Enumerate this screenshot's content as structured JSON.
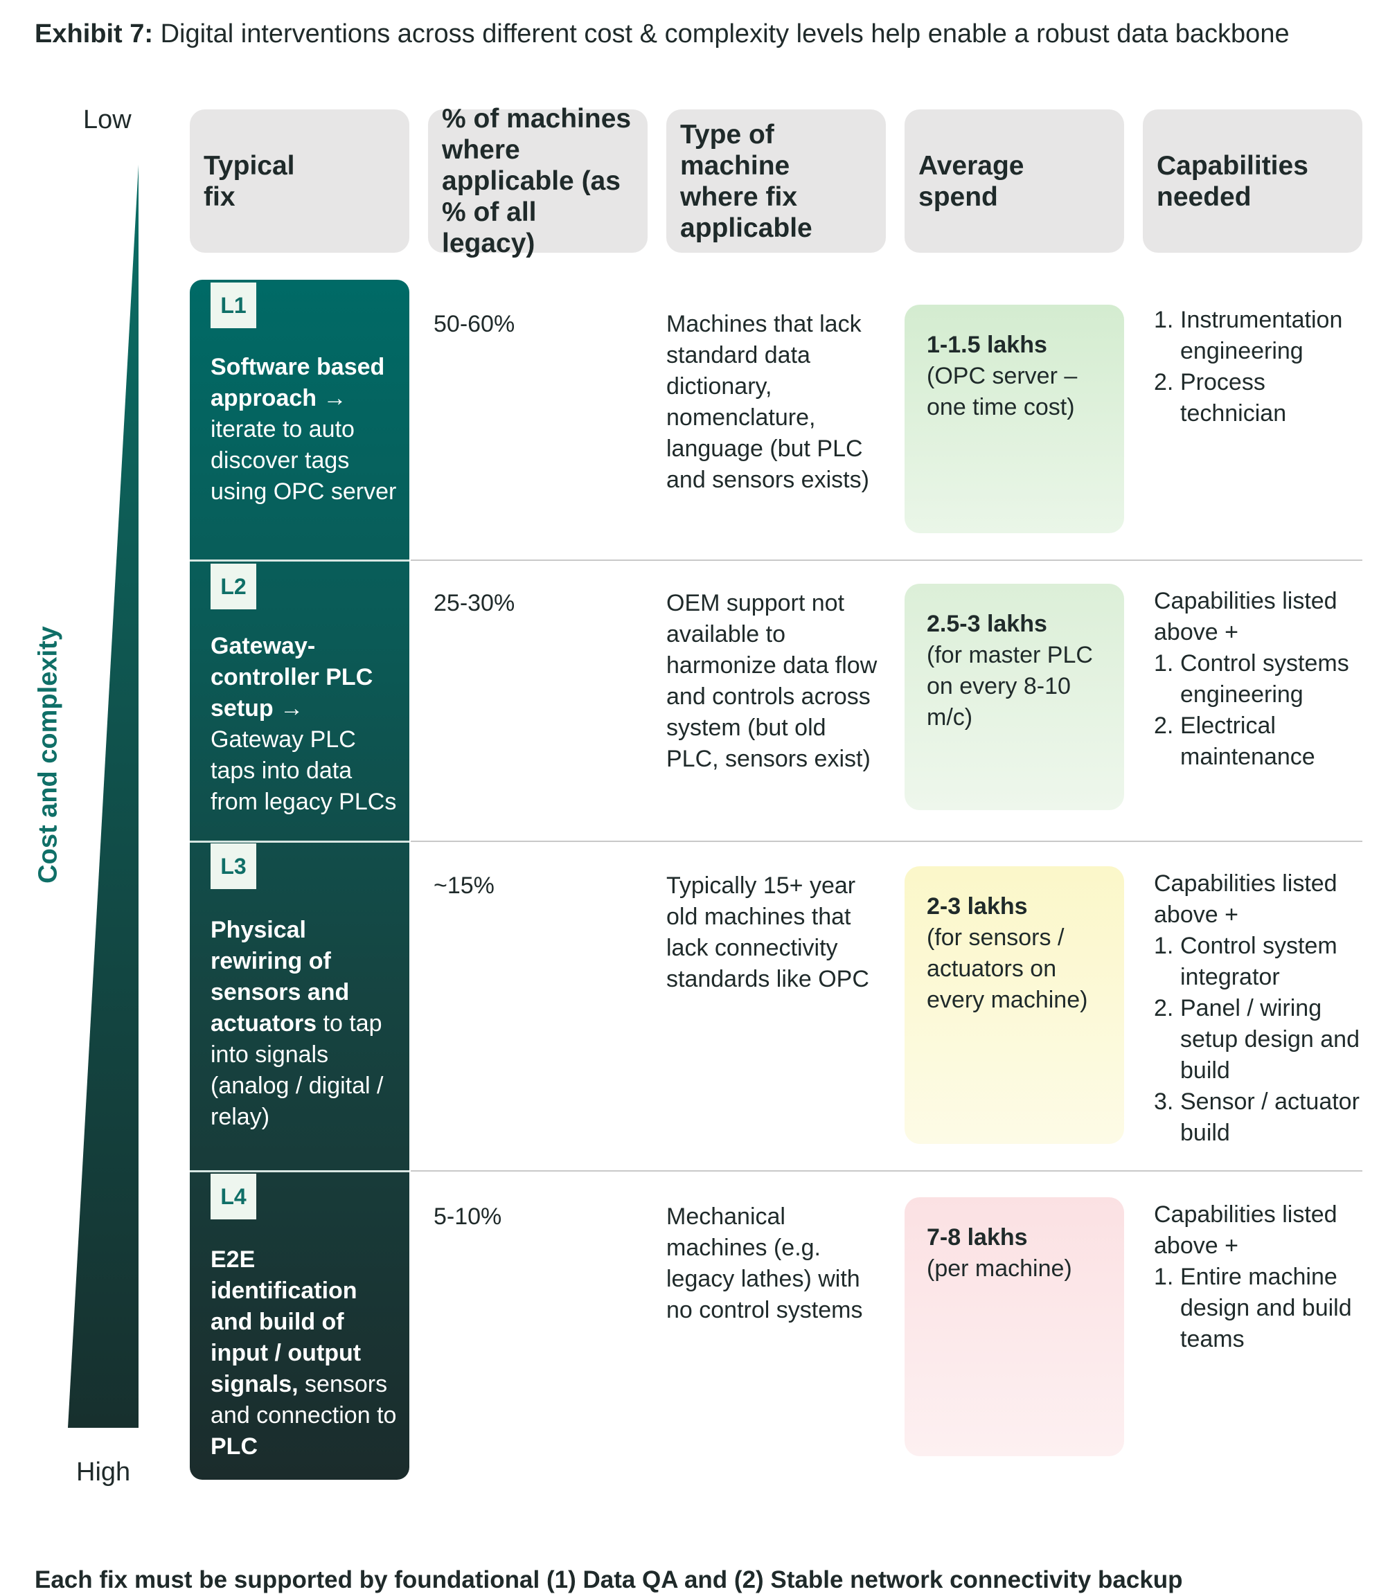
{
  "title": {
    "prefix": "Exhibit 7:",
    "text": "Digital interventions across different cost & complexity levels help enable a robust data backbone"
  },
  "scale": {
    "low": "Low",
    "high": "High",
    "axis_title": "Cost and complexity"
  },
  "headers": [
    "Typical fix",
    "% of machines where applicable (as % of all legacy)",
    "Type of machine where fix applicable",
    "Average spend",
    "Capabilities needed"
  ],
  "rows": [
    {
      "level": "L1",
      "fix_bold": "Software based approach →",
      "fix_rest": " iterate to auto discover tags using OPC server",
      "pct": "50-60%",
      "machine_type": "Machines that lack standard data dictionary, nomenclature, language (but PLC and sensors exists)",
      "spend_amount": "1-1.5 lakhs",
      "spend_note": "(OPC server – one time cost)",
      "spend_color": "#d7edd3",
      "caps_intro": "",
      "caps": [
        "Instrumentation engineering",
        "Process technician"
      ]
    },
    {
      "level": "L2",
      "fix_bold": "Gateway-controller PLC setup →",
      "fix_rest": " Gateway PLC taps into data from legacy PLCs",
      "pct": "25-30%",
      "machine_type": "OEM support not available to harmonize data flow and controls across system (but old PLC, sensors exist)",
      "spend_amount": "2.5-3 lakhs",
      "spend_note": "(for master PLC on every 8-10 m/c)",
      "spend_color": "#def0da",
      "caps_intro": "Capabilities listed above +",
      "caps": [
        "Control systems engineering",
        "Electrical maintenance"
      ]
    },
    {
      "level": "L3",
      "fix_bold": "Physical rewiring of sensors and actuators",
      "fix_rest": " to tap into signals (analog / digital / relay)",
      "pct": "~15%",
      "machine_type": "Typically 15+ year old machines that lack connectivity standards like OPC",
      "spend_amount": "2-3 lakhs",
      "spend_note": "(for sensors / actuators on every machine)",
      "spend_color": "#fbf8d0",
      "caps_intro": "Capabilities listed above +",
      "caps": [
        "Control system integrator",
        "Panel / wiring setup design and build",
        "Sensor / actuator build"
      ]
    },
    {
      "level": "L4",
      "fix_bold": "E2E identification and build of input / output signals,",
      "fix_rest": " sensors and connection to ",
      "fix_tail_bold": "PLC",
      "pct": "5-10%",
      "machine_type": "Mechanical machines (e.g. legacy lathes) with no control systems",
      "spend_amount": "7-8 lakhs",
      "spend_note": "(per machine)",
      "spend_color": "#fbe4e6",
      "caps_intro": "Capabilities listed above +",
      "caps": [
        "Entire machine design and build teams"
      ]
    }
  ],
  "footer": "Each fix must be supported by foundational (1) Data QA and (2) Stable network connectivity backup",
  "colors": {
    "teal_top": "#006c68",
    "teal_bottom": "#1b2a2a",
    "header_bg": "#e7e6e6",
    "axis_title": "#0f6f67"
  }
}
